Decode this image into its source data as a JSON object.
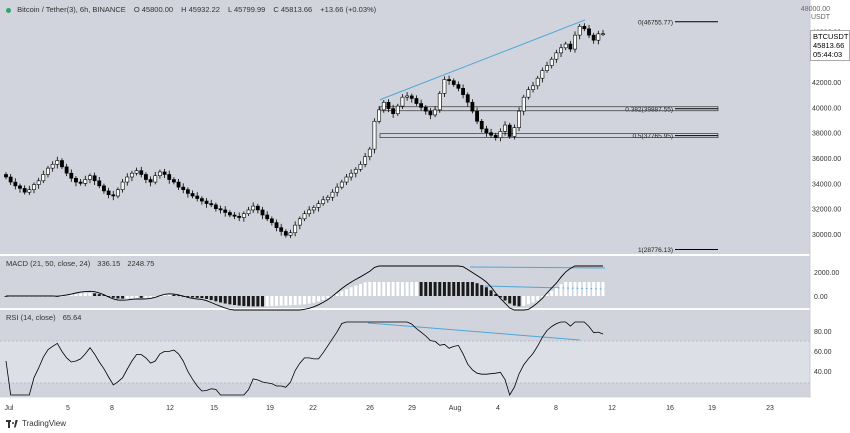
{
  "header": {
    "symbol_title": "Bitcoin / Tether(3), 6h, BINANCE",
    "open": "O 45800.00",
    "high": "H 45932.22",
    "low": "L 45799.99",
    "close": "C 45813.66",
    "change": "+13.66 (+0.03%)"
  },
  "price_axis": {
    "top_label": "48000.00",
    "unit": "USDT",
    "ticks": [
      "46000.00",
      "44000.00",
      "42000.00",
      "40000.00",
      "38000.00",
      "36000.00",
      "34000.00",
      "32000.00",
      "30000.00"
    ],
    "current_symbol": "BTCUSDT",
    "current_price": "45813.66",
    "countdown": "05:44:03"
  },
  "fib_levels": [
    {
      "label": "0(46755.77)",
      "value": 46755.77
    },
    {
      "label": "0.382(39887.55)",
      "value": 39887.55
    },
    {
      "label": "0.5(37765.95)",
      "value": 37765.95
    },
    {
      "label": "1(28776.13)",
      "value": 28776.13
    }
  ],
  "macd": {
    "name": "MACD (21, 50, close, 24)",
    "value1": "336.15",
    "value2": "2248.75",
    "ticks": [
      "2000.00",
      "0.00"
    ]
  },
  "rsi": {
    "name": "RSI (14, close)",
    "value": "65.64",
    "ticks": [
      "80.00",
      "60.00",
      "40.00"
    ]
  },
  "time_axis": [
    "Jul",
    "5",
    "8",
    "12",
    "15",
    "19",
    "22",
    "26",
    "29",
    "Aug",
    "4",
    "8",
    "12",
    "16",
    "19",
    "23"
  ],
  "footer": {
    "brand": "TradingView"
  },
  "colors": {
    "up": "#ffffff",
    "down": "#000000",
    "trend": "#4fa6d8",
    "bg": "#d1d4dc",
    "fib": "#000000"
  },
  "chart_data": {
    "type": "candlestick",
    "series": [
      {
        "name": "BTCUSDT",
        "values": [
          34500,
          34100,
          33800,
          33600,
          33300,
          33500,
          33900,
          34200,
          34700,
          35200,
          35500,
          35800,
          35300,
          34800,
          34400,
          34100,
          34000,
          34300,
          34600,
          34200,
          33800,
          33400,
          33100,
          33000,
          33500,
          34100,
          34500,
          34800,
          35000,
          34700,
          34300,
          34100,
          34600,
          34900,
          34700,
          34300,
          34100,
          33700,
          33500,
          33200,
          33000,
          32800,
          32600,
          32400,
          32300,
          32000,
          31900,
          31700,
          31500,
          31400,
          31300,
          31600,
          31900,
          32200,
          31900,
          31500,
          31200,
          30900,
          30500,
          30200,
          29900,
          30100,
          30700,
          31200,
          31600,
          31900,
          32100,
          32400,
          32700,
          32900,
          33300,
          33700,
          34100,
          34500,
          34800,
          35100,
          35500,
          36100,
          36700,
          38900,
          39800,
          40400,
          39900,
          39500,
          40100,
          40800,
          40900,
          40700,
          40300,
          40000,
          39700,
          39400,
          39800,
          41100,
          42200,
          42100,
          41800,
          41500,
          41000,
          40400,
          39700,
          38900,
          38300,
          38000,
          37800,
          37600,
          38100,
          38600,
          37700,
          38400,
          39700,
          40800,
          41400,
          41700,
          42300,
          42900,
          43300,
          43800,
          44300,
          44700,
          45000,
          44600,
          45700,
          46400,
          46200,
          45700,
          45300,
          45800,
          45813.66
        ]
      }
    ],
    "macd": {
      "line": [],
      "signal_label": "2248.75"
    },
    "rsi_last": 65.64,
    "ylim": [
      28000,
      48500
    ]
  }
}
